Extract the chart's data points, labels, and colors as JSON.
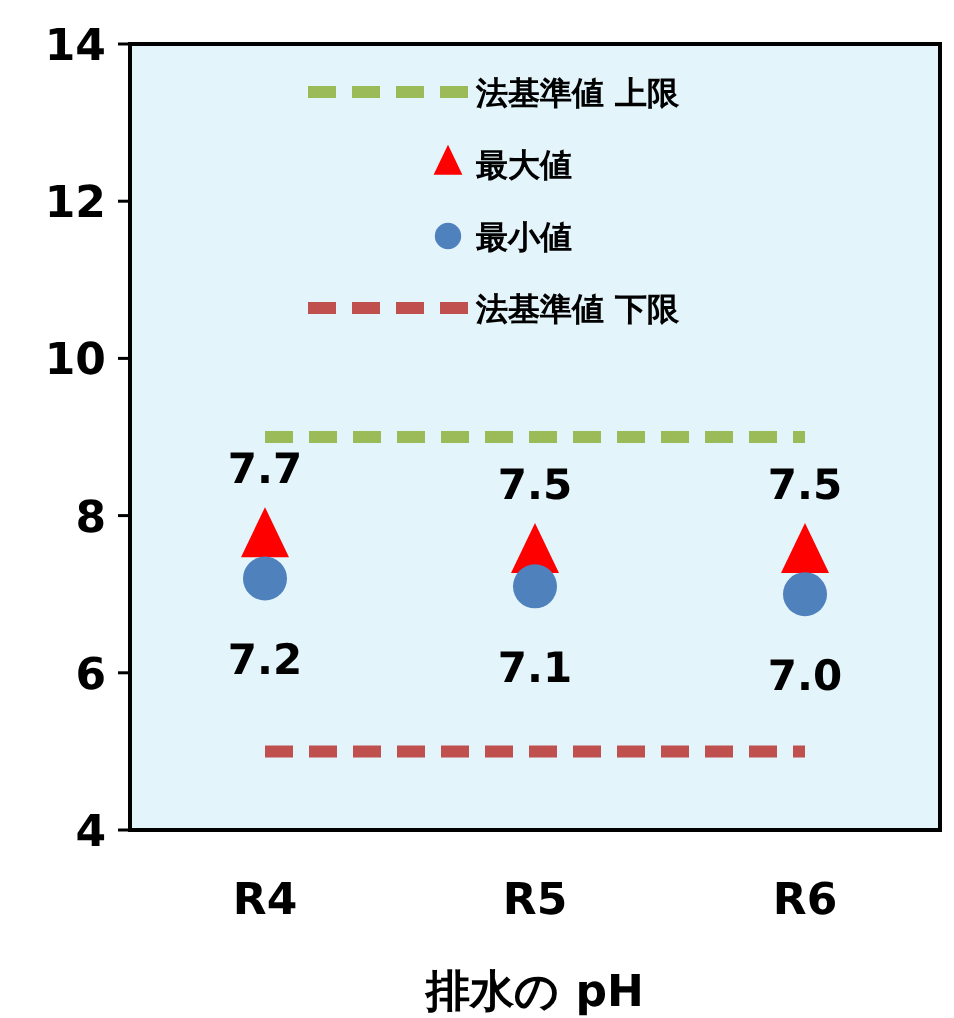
{
  "chart_data": {
    "type": "line",
    "categories": [
      "R4",
      "R5",
      "R6"
    ],
    "xlabel": "排水の pH",
    "ylim": [
      4,
      14
    ],
    "yticks": [
      4,
      6,
      8,
      10,
      12,
      14
    ],
    "legend": "top",
    "series": [
      {
        "name": "法基準値 上限",
        "type": "line",
        "color": "#9bbb59",
        "values": [
          9,
          9,
          9
        ],
        "line_style": "dashed",
        "marker": "none"
      },
      {
        "name": "最大値",
        "type": "scatter",
        "color": "#ff0000",
        "values": [
          7.7,
          7.5,
          7.5
        ],
        "marker": "triangle",
        "value_labels": [
          "7.7",
          "7.5",
          "7.5"
        ]
      },
      {
        "name": "最小値",
        "type": "scatter",
        "color": "#4f81bd",
        "values": [
          7.2,
          7.1,
          7.0
        ],
        "marker": "circle",
        "value_labels": [
          "7.2",
          "7.1",
          "7.0"
        ]
      },
      {
        "name": "法基準値 下限",
        "type": "line",
        "color": "#c0504d",
        "values": [
          5,
          5,
          5
        ],
        "line_style": "dashed",
        "marker": "none"
      }
    ]
  }
}
